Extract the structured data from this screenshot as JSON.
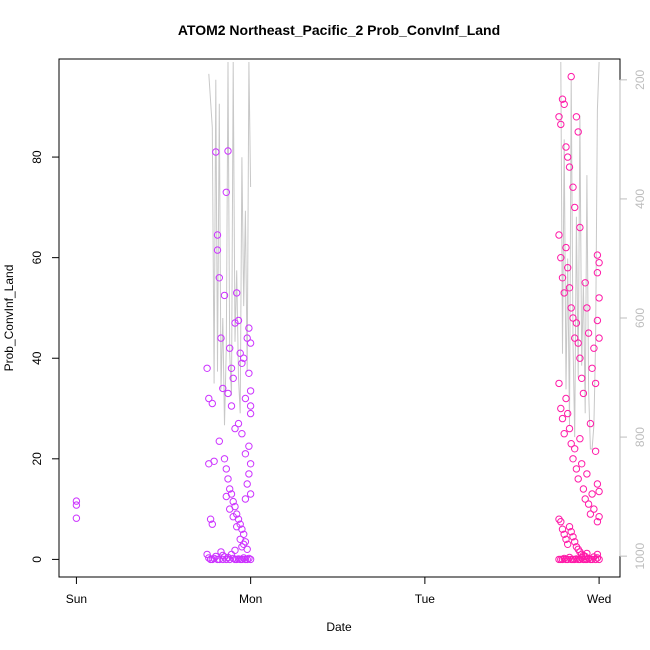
{
  "chart_data": {
    "type": "scatter",
    "title": "ATOM2 Northeast_Pacific_2 Prob_ConvInf_Land",
    "xlabel": "Date",
    "ylabel": "Prob_ConvInf_Land",
    "x_ticks": [
      "Sun",
      "Mon",
      "Tue",
      "Wed"
    ],
    "x_tick_days": [
      0,
      1,
      2,
      3
    ],
    "xlim_days": [
      -0.1,
      3.12
    ],
    "ylim": [
      -3.5,
      99.5
    ],
    "y_ticks": [
      0,
      20,
      40,
      60,
      80
    ],
    "y2_ticks": [
      200,
      400,
      600,
      800,
      1000
    ],
    "y2lim": [
      1035,
      165
    ],
    "y2_reversed": true,
    "colors": {
      "points_early": "#cc33ff",
      "points_late": "#ff1aa8",
      "altitude_line": "#c8c8c8"
    },
    "series": [
      {
        "marker": "open-circle",
        "points": [
          [
            0.0,
            11.6
          ],
          [
            0.0,
            10.8
          ],
          [
            0.0,
            8.2
          ],
          [
            0.75,
            38.0
          ],
          [
            0.76,
            32.0
          ],
          [
            0.78,
            31.0
          ],
          [
            0.8,
            81.0
          ],
          [
            0.81,
            64.5
          ],
          [
            0.81,
            61.5
          ],
          [
            0.82,
            56.0
          ],
          [
            0.83,
            44.0
          ],
          [
            0.84,
            34.0
          ],
          [
            0.76,
            19.0
          ],
          [
            0.79,
            19.5
          ],
          [
            0.82,
            23.5
          ],
          [
            0.77,
            8.0
          ],
          [
            0.78,
            7.0
          ],
          [
            0.85,
            52.5
          ],
          [
            0.86,
            73.0
          ],
          [
            0.87,
            81.2
          ],
          [
            0.88,
            42.0
          ],
          [
            0.89,
            38.0
          ],
          [
            0.9,
            36.0
          ],
          [
            0.91,
            47.0
          ],
          [
            0.92,
            53.0
          ],
          [
            0.93,
            47.5
          ],
          [
            0.94,
            41.0
          ],
          [
            0.95,
            39.0
          ],
          [
            0.96,
            40.0
          ],
          [
            0.97,
            32.0
          ],
          [
            0.98,
            44.0
          ],
          [
            0.99,
            46.0
          ],
          [
            1.0,
            43.0
          ],
          [
            0.99,
            37.0
          ],
          [
            1.0,
            33.5
          ],
          [
            1.0,
            30.5
          ],
          [
            1.0,
            29.0
          ],
          [
            0.87,
            33.0
          ],
          [
            0.89,
            30.5
          ],
          [
            0.91,
            26.0
          ],
          [
            0.93,
            27.0
          ],
          [
            0.95,
            25.0
          ],
          [
            0.97,
            21.0
          ],
          [
            0.99,
            22.5
          ],
          [
            1.0,
            19.0
          ],
          [
            0.85,
            20.0
          ],
          [
            0.86,
            18.0
          ],
          [
            0.87,
            16.0
          ],
          [
            0.88,
            14.0
          ],
          [
            0.89,
            13.0
          ],
          [
            0.9,
            11.5
          ],
          [
            0.91,
            10.5
          ],
          [
            0.92,
            9.0
          ],
          [
            0.93,
            8.0
          ],
          [
            0.94,
            7.0
          ],
          [
            0.95,
            6.0
          ],
          [
            0.96,
            5.0
          ],
          [
            0.97,
            12.0
          ],
          [
            0.98,
            15.0
          ],
          [
            0.99,
            17.0
          ],
          [
            1.0,
            13.0
          ],
          [
            0.86,
            12.5
          ],
          [
            0.88,
            10.0
          ],
          [
            0.9,
            8.5
          ],
          [
            0.92,
            6.5
          ],
          [
            0.94,
            4.0
          ],
          [
            0.96,
            3.0
          ],
          [
            0.98,
            2.0
          ],
          [
            0.83,
            1.5
          ],
          [
            0.84,
            0.8
          ],
          [
            0.85,
            0.5
          ],
          [
            0.75,
            1.0
          ],
          [
            0.76,
            0.3
          ],
          [
            0.77,
            0.0
          ],
          [
            0.78,
            0.0
          ],
          [
            0.79,
            0.2
          ],
          [
            0.8,
            0.6
          ],
          [
            0.81,
            0.0
          ],
          [
            0.82,
            0.0
          ],
          [
            0.84,
            0.0
          ],
          [
            0.86,
            0.0
          ],
          [
            0.87,
            0.4
          ],
          [
            0.88,
            0.0
          ],
          [
            0.9,
            0.2
          ],
          [
            0.91,
            0.0
          ],
          [
            0.92,
            0.0
          ],
          [
            0.93,
            0.1
          ],
          [
            0.94,
            0.0
          ],
          [
            0.95,
            0.0
          ],
          [
            0.96,
            0.3
          ],
          [
            0.97,
            0.0
          ],
          [
            0.98,
            0.0
          ],
          [
            0.99,
            0.2
          ],
          [
            1.0,
            0.0
          ],
          [
            0.89,
            1.0
          ],
          [
            0.91,
            1.8
          ],
          [
            0.95,
            2.5
          ],
          [
            0.97,
            3.5
          ]
        ]
      },
      {
        "marker": "open-circle",
        "points": [
          [
            2.77,
            88.0
          ],
          [
            2.78,
            86.5
          ],
          [
            2.79,
            91.5
          ],
          [
            2.8,
            90.5
          ],
          [
            2.81,
            82.0
          ],
          [
            2.82,
            80.0
          ],
          [
            2.83,
            78.0
          ],
          [
            2.84,
            96.0
          ],
          [
            2.85,
            74.0
          ],
          [
            2.86,
            70.0
          ],
          [
            2.87,
            88.0
          ],
          [
            2.88,
            85.0
          ],
          [
            2.89,
            66.0
          ],
          [
            2.77,
            64.5
          ],
          [
            2.78,
            60.0
          ],
          [
            2.79,
            56.0
          ],
          [
            2.8,
            53.0
          ],
          [
            2.81,
            62.0
          ],
          [
            2.82,
            58.0
          ],
          [
            2.83,
            54.0
          ],
          [
            2.84,
            50.0
          ],
          [
            2.85,
            48.0
          ],
          [
            2.86,
            44.0
          ],
          [
            2.87,
            47.0
          ],
          [
            2.88,
            43.0
          ],
          [
            2.89,
            40.0
          ],
          [
            2.9,
            36.0
          ],
          [
            2.91,
            33.0
          ],
          [
            2.92,
            55.0
          ],
          [
            2.93,
            50.0
          ],
          [
            2.94,
            45.0
          ],
          [
            2.95,
            27.0
          ],
          [
            2.96,
            38.0
          ],
          [
            2.97,
            42.0
          ],
          [
            2.98,
            35.0
          ],
          [
            2.99,
            60.5
          ],
          [
            3.0,
            59.0
          ],
          [
            2.99,
            57.0
          ],
          [
            3.0,
            52.0
          ],
          [
            2.99,
            47.5
          ],
          [
            3.0,
            44.0
          ],
          [
            2.77,
            35.0
          ],
          [
            2.78,
            30.0
          ],
          [
            2.79,
            28.0
          ],
          [
            2.8,
            25.0
          ],
          [
            2.81,
            32.0
          ],
          [
            2.82,
            29.0
          ],
          [
            2.83,
            26.0
          ],
          [
            2.84,
            23.0
          ],
          [
            2.85,
            20.0
          ],
          [
            2.86,
            22.0
          ],
          [
            2.87,
            18.0
          ],
          [
            2.88,
            16.0
          ],
          [
            2.89,
            24.0
          ],
          [
            2.9,
            19.0
          ],
          [
            2.91,
            14.0
          ],
          [
            2.92,
            12.0
          ],
          [
            2.93,
            17.0
          ],
          [
            2.94,
            11.0
          ],
          [
            2.95,
            9.0
          ],
          [
            2.96,
            13.0
          ],
          [
            2.97,
            10.0
          ],
          [
            2.98,
            21.5
          ],
          [
            2.99,
            15.0
          ],
          [
            3.0,
            13.5
          ],
          [
            2.99,
            7.5
          ],
          [
            3.0,
            8.5
          ],
          [
            2.77,
            8.0
          ],
          [
            2.78,
            7.5
          ],
          [
            2.79,
            6.0
          ],
          [
            2.8,
            5.0
          ],
          [
            2.81,
            4.0
          ],
          [
            2.82,
            3.0
          ],
          [
            2.83,
            6.5
          ],
          [
            2.84,
            5.5
          ],
          [
            2.85,
            4.5
          ],
          [
            2.86,
            3.5
          ],
          [
            2.87,
            2.5
          ],
          [
            2.88,
            2.0
          ],
          [
            2.89,
            1.5
          ],
          [
            2.9,
            1.0
          ],
          [
            2.91,
            0.8
          ],
          [
            2.92,
            0.6
          ],
          [
            2.93,
            1.2
          ],
          [
            2.77,
            0.0
          ],
          [
            2.78,
            0.0
          ],
          [
            2.79,
            0.0
          ],
          [
            2.8,
            0.2
          ],
          [
            2.81,
            0.0
          ],
          [
            2.82,
            0.0
          ],
          [
            2.83,
            0.4
          ],
          [
            2.84,
            0.0
          ],
          [
            2.85,
            0.0
          ],
          [
            2.86,
            0.0
          ],
          [
            2.87,
            0.1
          ],
          [
            2.88,
            0.0
          ],
          [
            2.89,
            0.0
          ],
          [
            2.9,
            0.3
          ],
          [
            2.91,
            0.0
          ],
          [
            2.92,
            0.0
          ],
          [
            2.93,
            0.0
          ],
          [
            2.94,
            0.2
          ],
          [
            2.95,
            0.0
          ],
          [
            2.96,
            0.0
          ],
          [
            2.97,
            0.5
          ],
          [
            2.98,
            0.0
          ],
          [
            2.99,
            1.0
          ],
          [
            3.0,
            0.0
          ],
          [
            2.99,
            0.3
          ]
        ]
      }
    ],
    "altitude_line": [
      [
        0.76,
        190
      ],
      [
        0.78,
        280
      ],
      [
        0.79,
        710
      ],
      [
        0.8,
        200
      ],
      [
        0.81,
        690
      ],
      [
        0.82,
        240
      ],
      [
        0.83,
        720
      ],
      [
        0.84,
        600
      ],
      [
        0.85,
        780
      ],
      [
        0.86,
        650
      ],
      [
        0.87,
        170
      ],
      [
        0.88,
        660
      ],
      [
        0.89,
        730
      ],
      [
        0.9,
        170
      ],
      [
        0.91,
        640
      ],
      [
        0.92,
        520
      ],
      [
        0.93,
        700
      ],
      [
        0.94,
        760
      ],
      [
        0.95,
        330
      ],
      [
        0.96,
        580
      ],
      [
        0.97,
        420
      ],
      [
        0.98,
        690
      ],
      [
        0.99,
        170
      ],
      [
        1.0,
        380
      ],
      [
        2.78,
        170
      ],
      [
        2.79,
        660
      ],
      [
        2.8,
        300
      ],
      [
        2.81,
        720
      ],
      [
        2.82,
        500
      ],
      [
        2.83,
        780
      ],
      [
        2.84,
        200
      ],
      [
        2.85,
        640
      ],
      [
        2.86,
        800
      ],
      [
        2.87,
        430
      ],
      [
        2.88,
        700
      ],
      [
        2.89,
        260
      ],
      [
        2.9,
        680
      ],
      [
        2.91,
        540
      ],
      [
        2.92,
        760
      ],
      [
        2.93,
        360
      ],
      [
        2.94,
        720
      ],
      [
        2.95,
        820
      ],
      [
        2.96,
        820
      ],
      [
        2.97,
        780
      ],
      [
        2.98,
        640
      ],
      [
        2.99,
        250
      ],
      [
        3.0,
        170
      ]
    ]
  }
}
